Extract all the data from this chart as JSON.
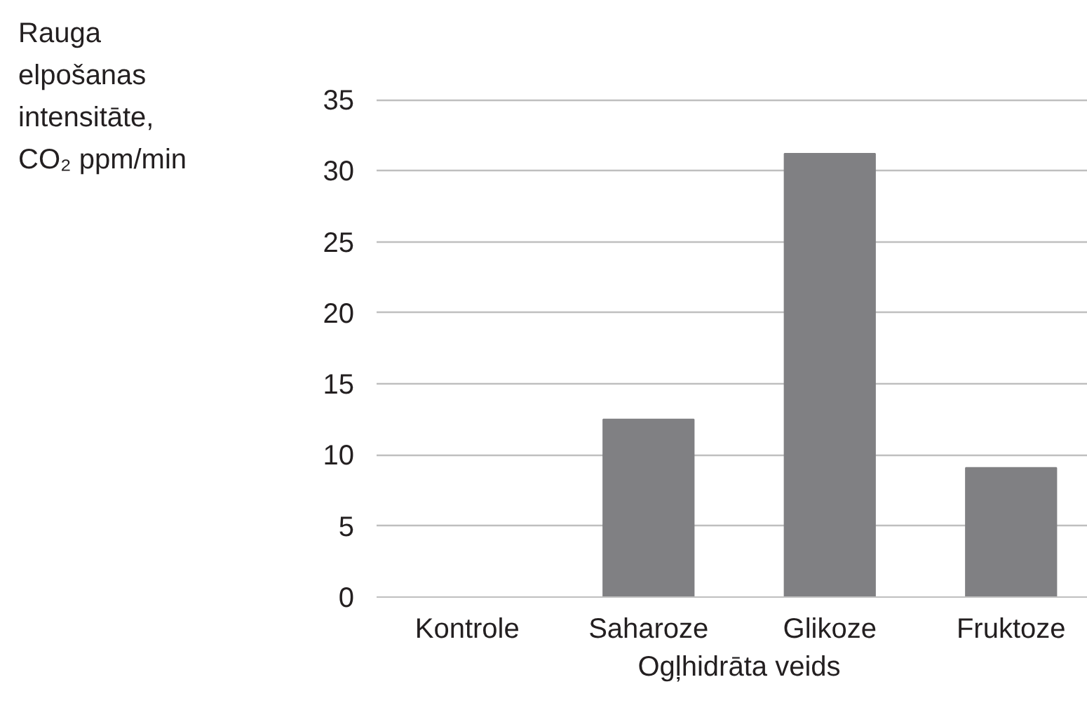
{
  "chart_data": {
    "type": "bar",
    "ylabel": "Rauga elpošanas intensitāte, CO₂ ppm/min",
    "xlabel": "Ogļhidrāta veids",
    "categories": [
      "Kontrole",
      "Saharoze",
      "Glikoze",
      "Fruktoze"
    ],
    "values": [
      0,
      12.5,
      31.2,
      9.1
    ],
    "color": "#808083",
    "ylim": [
      0,
      35
    ],
    "yticks": [
      0,
      5,
      10,
      15,
      20,
      25,
      30,
      35
    ],
    "grid": "y"
  }
}
